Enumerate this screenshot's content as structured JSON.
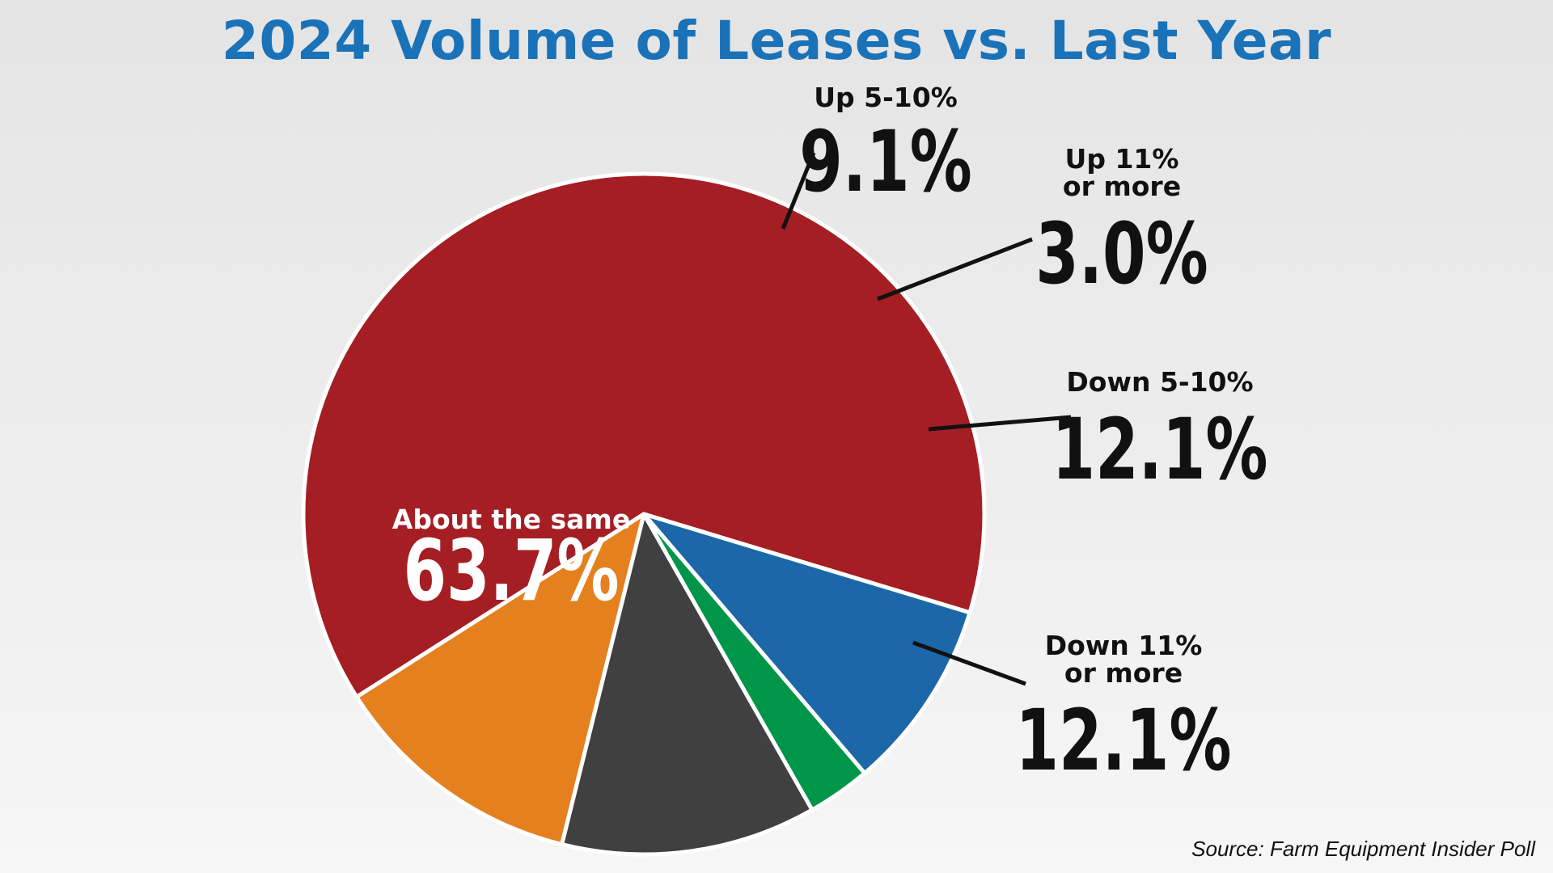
{
  "chart_data": {
    "type": "pie",
    "title": "2024 Volume of Leases vs. Last Year",
    "source": "Source: Farm Equipment Insider Poll",
    "slices": [
      {
        "name": "about-the-same",
        "label_lines": [
          "About the same"
        ],
        "value": 63.7,
        "value_label": "63.7%",
        "color": "#a41e24"
      },
      {
        "name": "up-5-10",
        "label_lines": [
          "Up 5-10%"
        ],
        "value": 9.1,
        "value_label": "9.1%",
        "color": "#1c67a8"
      },
      {
        "name": "up-11-or-more",
        "label_lines": [
          "Up 11%",
          "or more"
        ],
        "value": 3.0,
        "value_label": "3.0%",
        "color": "#009649"
      },
      {
        "name": "down-5-10",
        "label_lines": [
          "Down 5-10%"
        ],
        "value": 12.1,
        "value_label": "12.1%",
        "color": "#404040"
      },
      {
        "name": "down-11-or-more",
        "label_lines": [
          "Down 11%",
          "or more"
        ],
        "value": 12.1,
        "value_label": "12.1%",
        "color": "#e5801f"
      }
    ]
  }
}
